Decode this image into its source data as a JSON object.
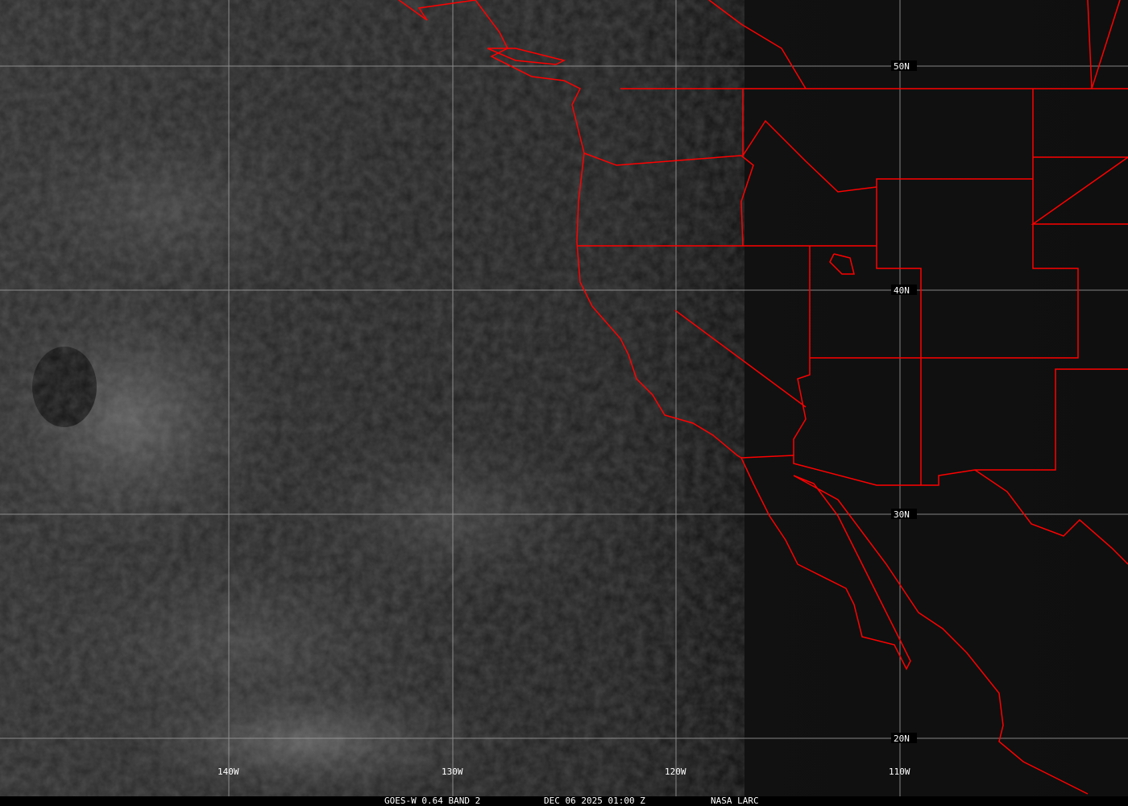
{
  "image": {
    "satellite": "GOES-W",
    "band_info": "GOES-W 0.64 BAND 2",
    "datetime": "DEC 06 2025 01:00 Z",
    "credit": "NASA LARC"
  },
  "grid": {
    "lat_labels": [
      "50N",
      "40N",
      "30N",
      "20N"
    ],
    "lon_labels": [
      "140W",
      "130W",
      "120W",
      "110W"
    ]
  },
  "colors": {
    "boundaries": "#ff0000",
    "grid": "#a0a0a0",
    "background": "#111111"
  }
}
